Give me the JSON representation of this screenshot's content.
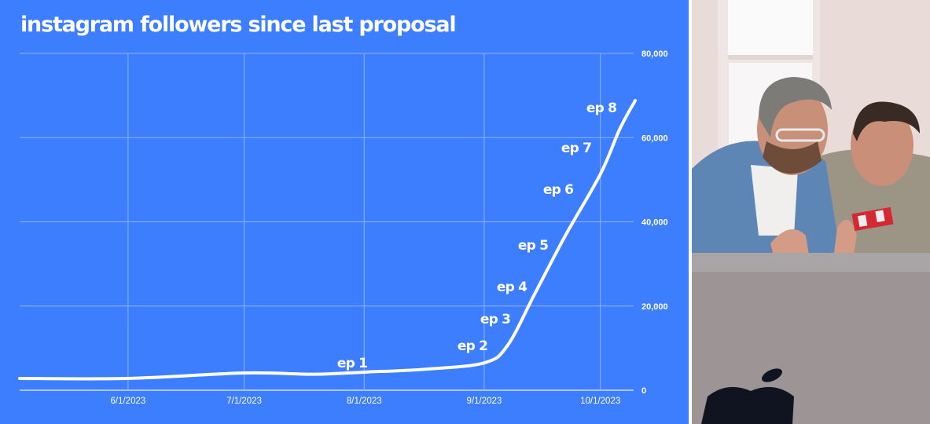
{
  "chart_data": {
    "type": "line",
    "title": "instagram followers since last proposal",
    "xlabel": "",
    "ylabel": "",
    "x_ticks": [
      "6/1/2023",
      "7/1/2023",
      "8/1/2023",
      "9/1/2023",
      "10/1/2023"
    ],
    "y_ticks": [
      "0",
      "20,000",
      "40,000",
      "60,000",
      "80,000"
    ],
    "ylim": [
      0,
      80000
    ],
    "xlim": [
      "2023-05-04",
      "2023-10-10"
    ],
    "y_axis_side": "right",
    "grid": true,
    "line_color": "#ffffff",
    "background_color": "#3d7dff",
    "series": [
      {
        "x": [
          "2023-05-04",
          "2023-06-01",
          "2023-07-01",
          "2023-07-19",
          "2023-08-01",
          "2023-08-17",
          "2023-09-01",
          "2023-09-07",
          "2023-09-14",
          "2023-09-22",
          "2023-10-01",
          "2023-10-06",
          "2023-10-10"
        ],
        "y": [
          2800,
          2800,
          4100,
          3800,
          4300,
          5000,
          6500,
          10600,
          22800,
          36800,
          51300,
          62000,
          68800
        ]
      }
    ],
    "annotations": [
      "ep 1",
      "ep 2",
      "ep 3",
      "ep 4",
      "ep 5",
      "ep 6",
      "ep 7",
      "ep 8"
    ]
  },
  "photo": {
    "description_icon": "photo-two-men-at-laptop"
  }
}
